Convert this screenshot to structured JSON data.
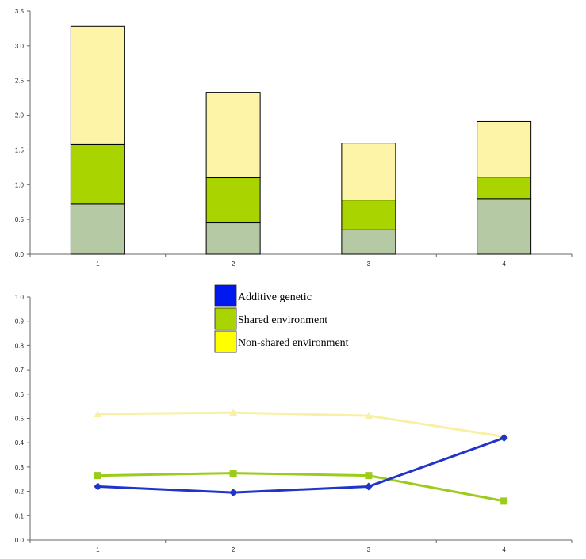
{
  "chart_data": [
    {
      "type": "bar",
      "stacked": true,
      "categories": [
        "1",
        "2",
        "3",
        "4"
      ],
      "ylim": [
        0,
        3.5
      ],
      "yticks": [
        "0.0",
        "0.5",
        "1.0",
        "1.5",
        "2.0",
        "2.5",
        "3.0",
        "3.5"
      ],
      "grid": false,
      "series": [
        {
          "values": [
            0.72,
            0.45,
            0.35,
            0.8
          ],
          "color": "#b5c9a4"
        },
        {
          "values": [
            0.86,
            0.65,
            0.43,
            0.31
          ],
          "color": "#aad400"
        },
        {
          "values": [
            1.7,
            1.23,
            0.82,
            0.8
          ],
          "color": "#fdf4a7"
        }
      ]
    },
    {
      "type": "line",
      "categories": [
        "1",
        "2",
        "3",
        "4"
      ],
      "ylim": [
        0,
        1.0
      ],
      "yticks": [
        "0.0",
        "0.1",
        "0.2",
        "0.3",
        "0.4",
        "0.5",
        "0.6",
        "0.7",
        "0.8",
        "0.9",
        "1.0"
      ],
      "grid": false,
      "legend_placement": "top-center",
      "series": [
        {
          "name": "Additive genetic",
          "values": [
            0.22,
            0.195,
            0.22,
            0.42
          ],
          "color": "#1f35c8",
          "legend_color": "#0018f0",
          "marker": "diamond"
        },
        {
          "name": "Shared environment",
          "values": [
            0.265,
            0.275,
            0.265,
            0.16
          ],
          "color": "#9ccc1a",
          "legend_color": "#aad400",
          "marker": "square"
        },
        {
          "name": "Non-shared environment",
          "values": [
            0.518,
            0.524,
            0.511,
            0.425
          ],
          "color": "#f8f0a6",
          "legend_color": "#ffff00",
          "marker": "triangle"
        }
      ]
    }
  ]
}
